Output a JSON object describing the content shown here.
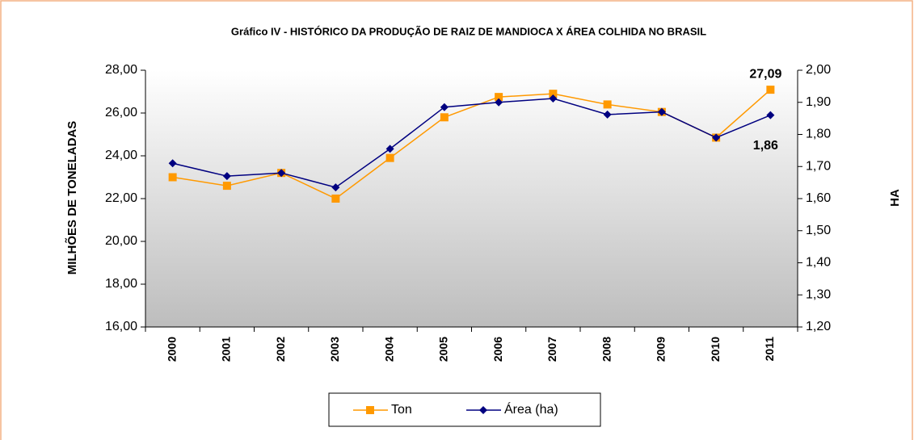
{
  "chart_data": {
    "type": "line",
    "title": "Gráfico IV - HISTÓRICO DA PRODUÇÃO DE RAIZ DE MANDIOCA X ÁREA COLHIDA NO BRASIL",
    "ylabel": "MILHÕES DE TONELADAS",
    "y2label": "HA",
    "categories": [
      "2000",
      "2001",
      "2002",
      "2003",
      "2004",
      "2005",
      "2006",
      "2007",
      "2008",
      "2009",
      "2010",
      "2011"
    ],
    "series": [
      {
        "name": "Ton",
        "color": "#ff9900",
        "marker": "square",
        "values": [
          23.0,
          22.6,
          23.2,
          22.0,
          23.9,
          25.8,
          26.75,
          26.9,
          26.4,
          26.05,
          24.85,
          27.09
        ],
        "value_labels": [
          null,
          null,
          null,
          null,
          null,
          null,
          null,
          null,
          null,
          null,
          null,
          "27,09"
        ]
      },
      {
        "name": "Área (ha)",
        "color": "#000080",
        "marker": "diamond",
        "axis": "y2",
        "values": [
          1.71,
          1.67,
          1.68,
          1.635,
          1.755,
          1.885,
          1.9,
          1.912,
          1.862,
          1.87,
          1.79,
          1.86
        ],
        "value_labels": [
          null,
          null,
          null,
          null,
          null,
          null,
          null,
          null,
          null,
          null,
          null,
          "1,86"
        ]
      }
    ],
    "ylim": [
      16,
      28
    ],
    "yticks": [
      {
        "value": 16,
        "label": "16,00"
      },
      {
        "value": 18,
        "label": "18,00"
      },
      {
        "value": 20,
        "label": "20,00"
      },
      {
        "value": 22,
        "label": "22,00"
      },
      {
        "value": 24,
        "label": "24,00"
      },
      {
        "value": 26,
        "label": "26,00"
      },
      {
        "value": 28,
        "label": "28,00"
      }
    ],
    "y2lim": [
      1.2,
      2.0
    ],
    "y2ticks": [
      {
        "value": 1.2,
        "label": "1,20"
      },
      {
        "value": 1.3,
        "label": "1,30"
      },
      {
        "value": 1.4,
        "label": "1,40"
      },
      {
        "value": 1.5,
        "label": "1,50"
      },
      {
        "value": 1.6,
        "label": "1,60"
      },
      {
        "value": 1.7,
        "label": "1,70"
      },
      {
        "value": 1.8,
        "label": "1,80"
      },
      {
        "value": 1.9,
        "label": "1,90"
      },
      {
        "value": 2.0,
        "label": "2,00"
      }
    ],
    "grid": false,
    "legend": "bottom"
  }
}
